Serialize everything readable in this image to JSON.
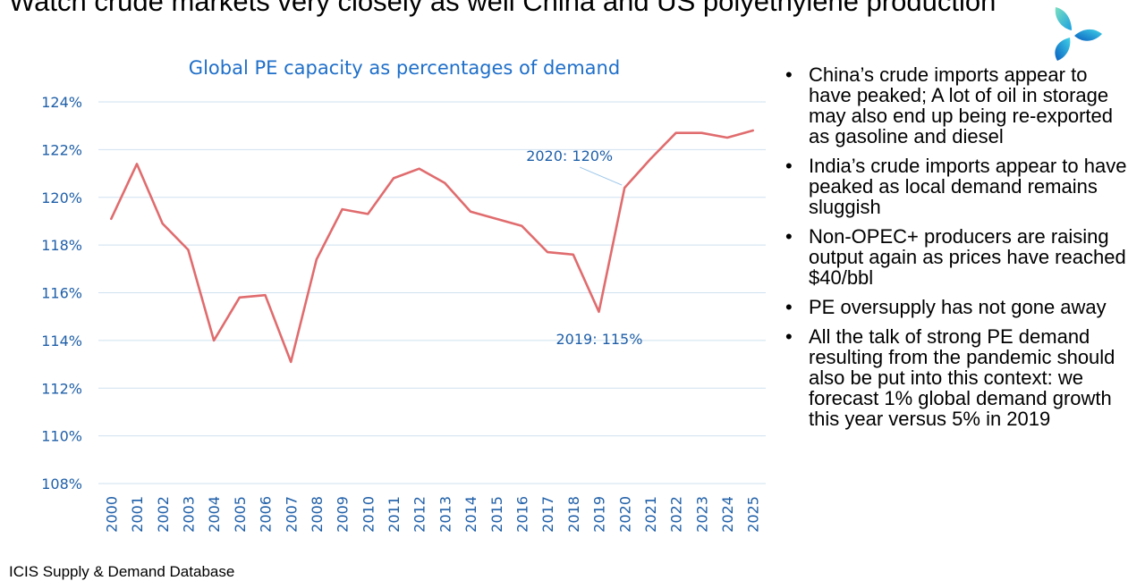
{
  "slide": {
    "title": "Watch crude markets very closely as well China and US polyethylene production",
    "source": "ICIS Supply & Demand Database"
  },
  "bullets": [
    "China’s crude imports appear to have peaked; A lot of oil in storage may also end up being re-exported as gasoline and diesel",
    "India’s crude imports appear to have peaked as local demand remains sluggish",
    "Non-OPEC+ producers are raising output again as prices have reached $40/bbl",
    "PE oversupply has not gone away",
    "All the talk of strong PE demand resulting from the pandemic should also be put into this context: we forecast 1% global demand growth this year versus 5% in 2019"
  ],
  "colors": {
    "line": "#e06c6e",
    "title": "#1f6fc9",
    "axis_text": "#1f5fa8",
    "grid": "#cfe0ef",
    "annotation": "#1f5fa8"
  },
  "chart_data": {
    "type": "line",
    "title": "Global PE capacity as percentages of demand",
    "xlabel": "",
    "ylabel": "",
    "ylim": [
      108,
      124
    ],
    "yticks": [
      108,
      110,
      112,
      114,
      116,
      118,
      120,
      122,
      124
    ],
    "ytick_labels": [
      "108%",
      "110%",
      "112%",
      "114%",
      "116%",
      "118%",
      "120%",
      "122%",
      "124%"
    ],
    "grid": true,
    "categories": [
      "2000",
      "2001",
      "2002",
      "2003",
      "2004",
      "2005",
      "2006",
      "2007",
      "2008",
      "2009",
      "2010",
      "2011",
      "2012",
      "2013",
      "2014",
      "2015",
      "2016",
      "2017",
      "2018",
      "2019",
      "2020",
      "2021",
      "2022",
      "2023",
      "2024",
      "2025"
    ],
    "series": [
      {
        "name": "Global PE capacity as percentages of demand",
        "values": [
          119.1,
          121.4,
          118.9,
          117.8,
          114.0,
          115.8,
          115.9,
          113.1,
          117.4,
          119.5,
          119.3,
          120.8,
          121.2,
          120.6,
          119.4,
          119.1,
          118.8,
          117.7,
          117.6,
          115.2,
          120.4,
          121.6,
          122.7,
          122.7,
          122.5,
          122.8
        ]
      }
    ],
    "annotations": [
      {
        "category": "2020",
        "text": "2020: 120%"
      },
      {
        "category": "2019",
        "text": "2019: 115%"
      }
    ]
  }
}
